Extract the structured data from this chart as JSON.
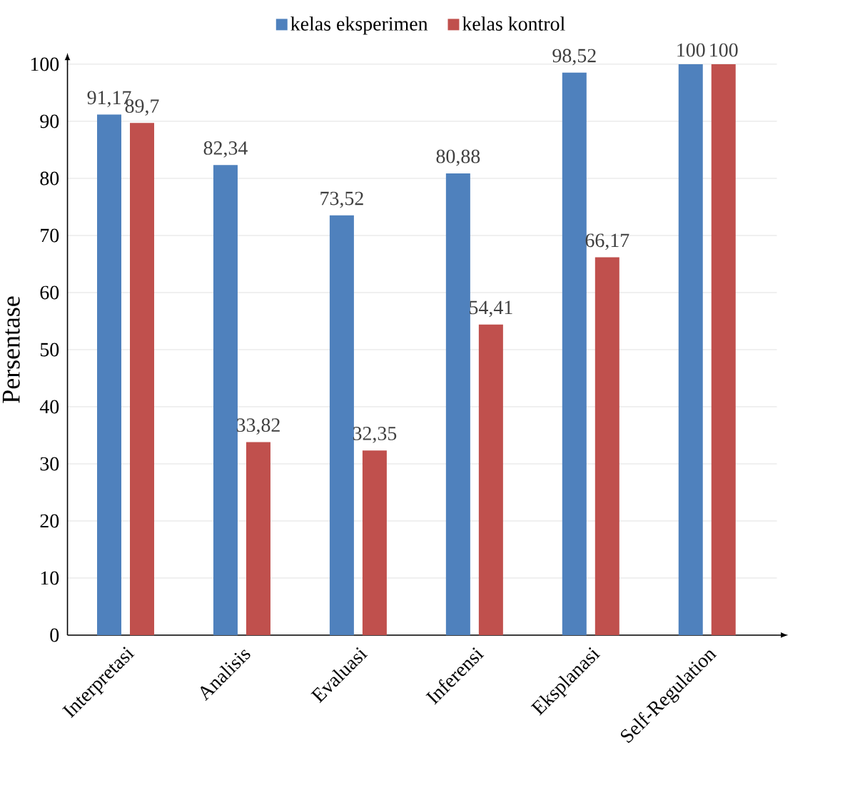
{
  "chart_data": {
    "type": "bar",
    "ylabel": "Persentase",
    "categories": [
      "Interpretasi",
      "Analisis",
      "Evaluasi",
      "Inferensi",
      "Eksplanasi",
      "Self-Regulation"
    ],
    "series": [
      {
        "name": "kelas eksperimen",
        "color": "#4f81bd",
        "values": [
          91.17,
          82.34,
          73.52,
          80.88,
          98.52,
          100
        ],
        "value_labels": [
          "91,17",
          "82,34",
          "73,52",
          "80,88",
          "98,52",
          "100"
        ]
      },
      {
        "name": "kelas kontrol",
        "color": "#c0504d",
        "values": [
          89.7,
          33.82,
          32.35,
          54.41,
          66.17,
          100
        ],
        "value_labels": [
          "89,7",
          "33,82",
          "32,35",
          "54,41",
          "66,17",
          "100"
        ]
      }
    ],
    "ylim": [
      0,
      100
    ],
    "yticks": [
      0,
      10,
      20,
      30,
      40,
      50,
      60,
      70,
      80,
      90,
      100
    ],
    "grid": "y",
    "legend": "top"
  }
}
